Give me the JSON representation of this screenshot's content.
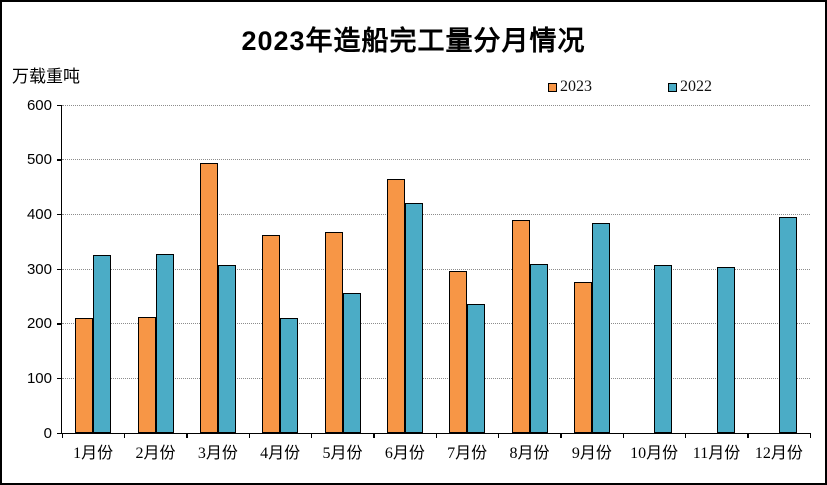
{
  "title": "2023年造船完工量分月情况",
  "y_unit_label": "万载重吨",
  "legend": {
    "position": "top-right-inside",
    "entries": [
      {
        "label": "2023",
        "color": "#F79646"
      },
      {
        "label": "2022",
        "color": "#4BACC6"
      }
    ]
  },
  "colors": {
    "series_2023": "#F79646",
    "series_2022": "#4BACC6",
    "bar_outline": "#000000",
    "gridline": "#8c8c8c",
    "background": "#ffffff",
    "frame": "#000000"
  },
  "chart_data": {
    "type": "bar",
    "title": "2023年造船完工量分月情况",
    "xlabel": "",
    "ylabel": "万载重吨",
    "categories": [
      "1月份",
      "2月份",
      "3月份",
      "4月份",
      "5月份",
      "6月份",
      "7月份",
      "8月份",
      "9月份",
      "10月份",
      "11月份",
      "12月份"
    ],
    "series": [
      {
        "name": "2023",
        "color": "#F79646",
        "values": [
          211,
          212,
          494,
          363,
          368,
          464,
          296,
          389,
          276,
          null,
          null,
          null
        ]
      },
      {
        "name": "2022",
        "color": "#4BACC6",
        "values": [
          325,
          327,
          308,
          210,
          257,
          421,
          236,
          310,
          385,
          308,
          304,
          396
        ]
      }
    ],
    "ylim": [
      0,
      600
    ],
    "yticks": [
      0,
      100,
      200,
      300,
      400,
      500,
      600
    ],
    "grid": "horizontal-dotted",
    "legend_position": "top-right-inside"
  }
}
